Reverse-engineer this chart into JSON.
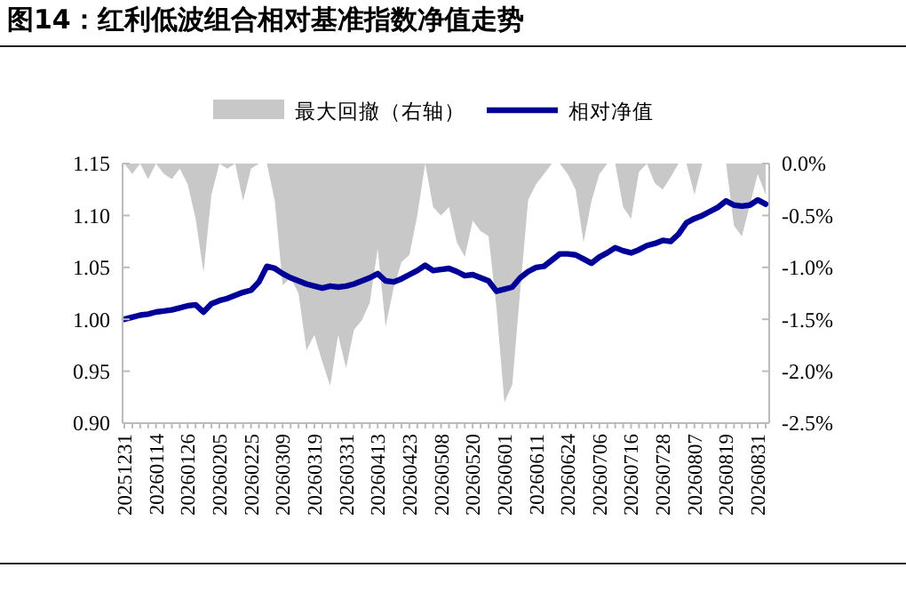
{
  "chart_data": {
    "type": "line",
    "title": "图14：红利低波组合相对基准指数净值走势",
    "categories": [
      "20251231",
      null,
      null,
      null,
      "20260114",
      null,
      null,
      null,
      "20260126",
      null,
      null,
      null,
      "20260205",
      null,
      null,
      null,
      "20260225",
      null,
      null,
      null,
      "20260309",
      null,
      null,
      null,
      "20260319",
      null,
      null,
      null,
      "20260331",
      null,
      null,
      null,
      "20260413",
      null,
      null,
      null,
      "20260423",
      null,
      null,
      null,
      "20260508",
      null,
      null,
      null,
      "20260520",
      null,
      null,
      null,
      "20260601",
      null,
      null,
      null,
      "20260611",
      null,
      null,
      null,
      "20260624",
      null,
      null,
      null,
      "20260706",
      null,
      null,
      null,
      "20260716",
      null,
      null,
      null,
      "20260728",
      null,
      null,
      null,
      "20260807",
      null,
      null,
      null,
      "20260819",
      null,
      null,
      null,
      "20260831",
      null
    ],
    "series": [
      {
        "name": "最大回撤（右轴）",
        "type": "area",
        "axis": "y2",
        "color": "#c8c8c8",
        "values": [
          0,
          -0.1,
          0,
          -0.15,
          0,
          -0.1,
          -0.15,
          -0.05,
          -0.2,
          -0.53,
          -1.05,
          -0.3,
          0,
          -0.05,
          0,
          -0.36,
          -0.05,
          0,
          0,
          -0.36,
          -1.17,
          -1.1,
          -1.25,
          -1.8,
          -1.65,
          -1.91,
          -2.14,
          -1.65,
          -1.97,
          -1.6,
          -1.51,
          -1.34,
          -0.82,
          -1.57,
          -1.2,
          -0.95,
          -0.88,
          -0.5,
          0,
          -0.42,
          -0.5,
          -0.42,
          -0.76,
          -0.9,
          -0.55,
          -0.65,
          -0.7,
          -1.39,
          -2.3,
          -2.13,
          -1.22,
          -0.35,
          -0.2,
          -0.1,
          0,
          0,
          -0.1,
          -0.25,
          -0.76,
          -0.36,
          -0.1,
          0,
          0,
          -0.42,
          -0.53,
          -0.08,
          0,
          -0.19,
          -0.25,
          -0.13,
          0,
          0,
          -0.3,
          0,
          0,
          0,
          0,
          -0.6,
          -0.7,
          -0.4,
          -0.1,
          -0.3
        ]
      },
      {
        "name": "相对净值",
        "color": "#000099",
        "values": [
          1.0,
          1.002,
          1.004,
          1.005,
          1.007,
          1.008,
          1.009,
          1.011,
          1.013,
          1.014,
          1.007,
          1.015,
          1.018,
          1.02,
          1.023,
          1.026,
          1.028,
          1.036,
          1.051,
          1.049,
          1.044,
          1.04,
          1.037,
          1.034,
          1.032,
          1.03,
          1.032,
          1.031,
          1.032,
          1.034,
          1.037,
          1.04,
          1.044,
          1.037,
          1.036,
          1.039,
          1.043,
          1.047,
          1.052,
          1.047,
          1.048,
          1.049,
          1.046,
          1.042,
          1.043,
          1.04,
          1.037,
          1.027,
          1.029,
          1.031,
          1.04,
          1.046,
          1.05,
          1.051,
          1.057,
          1.063,
          1.063,
          1.062,
          1.058,
          1.054,
          1.06,
          1.064,
          1.069,
          1.066,
          1.064,
          1.067,
          1.071,
          1.073,
          1.076,
          1.075,
          1.082,
          1.093,
          1.097,
          1.1,
          1.104,
          1.108,
          1.114,
          1.11,
          1.109,
          1.11,
          1.115,
          1.111
        ]
      }
    ],
    "ylim": [
      0.9,
      1.15
    ],
    "yticks": [
      {
        "value": 0.9,
        "label": "0.90"
      },
      {
        "value": 0.95,
        "label": "0.95"
      },
      {
        "value": 1.0,
        "label": "1.00"
      },
      {
        "value": 1.05,
        "label": "1.05"
      },
      {
        "value": 1.1,
        "label": "1.10"
      },
      {
        "value": 1.15,
        "label": "1.15"
      }
    ],
    "y2lim": [
      -2.5,
      0
    ],
    "y2ticks": [
      {
        "value": -2.5,
        "label": "-2.5%"
      },
      {
        "value": -2.0,
        "label": "-2.0%"
      },
      {
        "value": -1.5,
        "label": "-1.5%"
      },
      {
        "value": -1.0,
        "label": "-1.0%"
      },
      {
        "value": -0.5,
        "label": "-0.5%"
      },
      {
        "value": 0,
        "label": "0.0%"
      }
    ],
    "legend": "top",
    "grid": false,
    "marker": "none",
    "line_style": "solid"
  }
}
